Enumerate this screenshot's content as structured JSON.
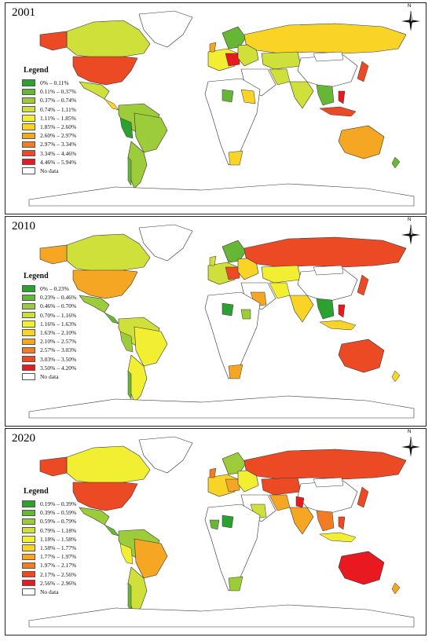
{
  "panels": [
    {
      "year": "2001",
      "legend_title": "Legend",
      "legend": [
        {
          "label": "0% – 0.11%",
          "color": "#2ba12f"
        },
        {
          "label": "0.11% – 0.37%",
          "color": "#67b736"
        },
        {
          "label": "0.37% – 0.74%",
          "color": "#9ccc3a"
        },
        {
          "label": "0.74% – 1.11%",
          "color": "#cfe03b"
        },
        {
          "label": "1.11% – 1.85%",
          "color": "#f2ee31"
        },
        {
          "label": "1.85% – 2.60%",
          "color": "#f9d427"
        },
        {
          "label": "2.60% – 2.97%",
          "color": "#f5a623"
        },
        {
          "label": "2.97% – 3.34%",
          "color": "#f17c24"
        },
        {
          "label": "3.34% – 4.46%",
          "color": "#ec4a25"
        },
        {
          "label": "4.46% – 5.94%",
          "color": "#e8191f"
        },
        {
          "label": "No data",
          "color": "#ffffff"
        }
      ]
    },
    {
      "year": "2010",
      "legend_title": "Legend",
      "legend": [
        {
          "label": "0% – 0.23%",
          "color": "#2ba12f"
        },
        {
          "label": "0.23% – 0.46%",
          "color": "#67b736"
        },
        {
          "label": "0.46% – 0.70%",
          "color": "#9ccc3a"
        },
        {
          "label": "0.70% – 1.16%",
          "color": "#cfe03b"
        },
        {
          "label": "1.16% – 1.63%",
          "color": "#f2ee31"
        },
        {
          "label": "1.63% – 2.10%",
          "color": "#f9d427"
        },
        {
          "label": "2.10% – 2.57%",
          "color": "#f5a623"
        },
        {
          "label": "2.57% – 3.03%",
          "color": "#f17c24"
        },
        {
          "label": "3.03% – 3.50%",
          "color": "#ec4a25"
        },
        {
          "label": "3.50% – 4.20%",
          "color": "#e8191f"
        },
        {
          "label": "No data",
          "color": "#ffffff"
        }
      ]
    },
    {
      "year": "2020",
      "legend_title": "Legend",
      "legend": [
        {
          "label": "0.19% – 0.39%",
          "color": "#2ba12f"
        },
        {
          "label": "0.39% – 0.59%",
          "color": "#67b736"
        },
        {
          "label": "0.59% – 0.79%",
          "color": "#9ccc3a"
        },
        {
          "label": "0.79% – 1.18%",
          "color": "#cfe03b"
        },
        {
          "label": "1.18% – 1.58%",
          "color": "#f2ee31"
        },
        {
          "label": "1.58% – 1.77%",
          "color": "#f9d427"
        },
        {
          "label": "1.77% – 1.97%",
          "color": "#f5a623"
        },
        {
          "label": "1.97% – 2.17%",
          "color": "#f17c24"
        },
        {
          "label": "2.17% – 2.56%",
          "color": "#ec4a25"
        },
        {
          "label": "2.56% – 2.96%",
          "color": "#e8191f"
        },
        {
          "label": "No data",
          "color": "#ffffff"
        }
      ]
    }
  ],
  "compass_label": "N"
}
